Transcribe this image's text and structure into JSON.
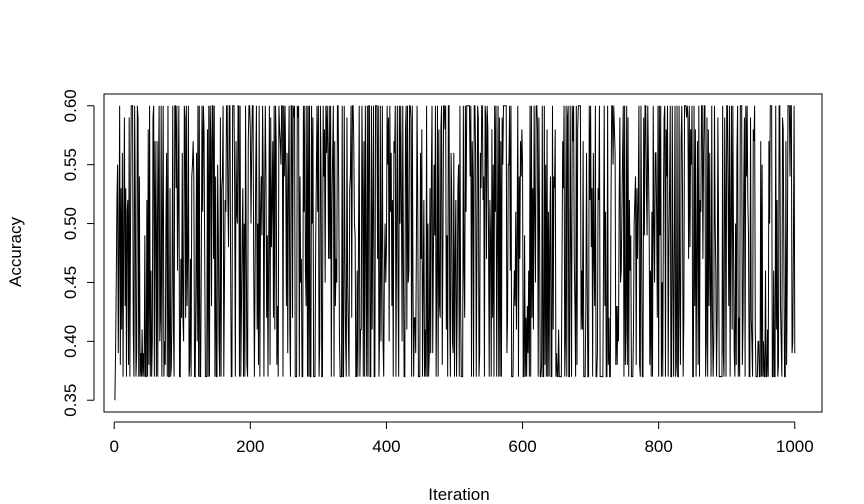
{
  "chart_data": {
    "type": "line",
    "title": "",
    "xlabel": "Iteration",
    "ylabel": "Accuracy",
    "xlim": [
      -15,
      1040
    ],
    "ylim": [
      0.34,
      0.61
    ],
    "xticks": [
      0,
      200,
      400,
      600,
      800,
      1000
    ],
    "xtick_labels": [
      "0",
      "200",
      "400",
      "600",
      "800",
      "1000"
    ],
    "yticks": [
      0.35,
      0.4,
      0.45,
      0.5,
      0.55,
      0.6
    ],
    "ytick_labels": [
      "0.35",
      "0.40",
      "0.45",
      "0.50",
      "0.55",
      "0.60"
    ],
    "line_color": "#000000",
    "grid": false,
    "legend": "none",
    "series": [
      {
        "x_start": 1,
        "x_step": 1,
        "n_points": 1000,
        "y_min": 0.35,
        "y_max": 0.6,
        "values_head": [
          0.35,
          0.39,
          0.45,
          0.52,
          0.55,
          0.39,
          0.48,
          0.6,
          0.38,
          0.53,
          0.41,
          0.56,
          0.37,
          0.5,
          0.59,
          0.43
        ]
      }
    ]
  }
}
